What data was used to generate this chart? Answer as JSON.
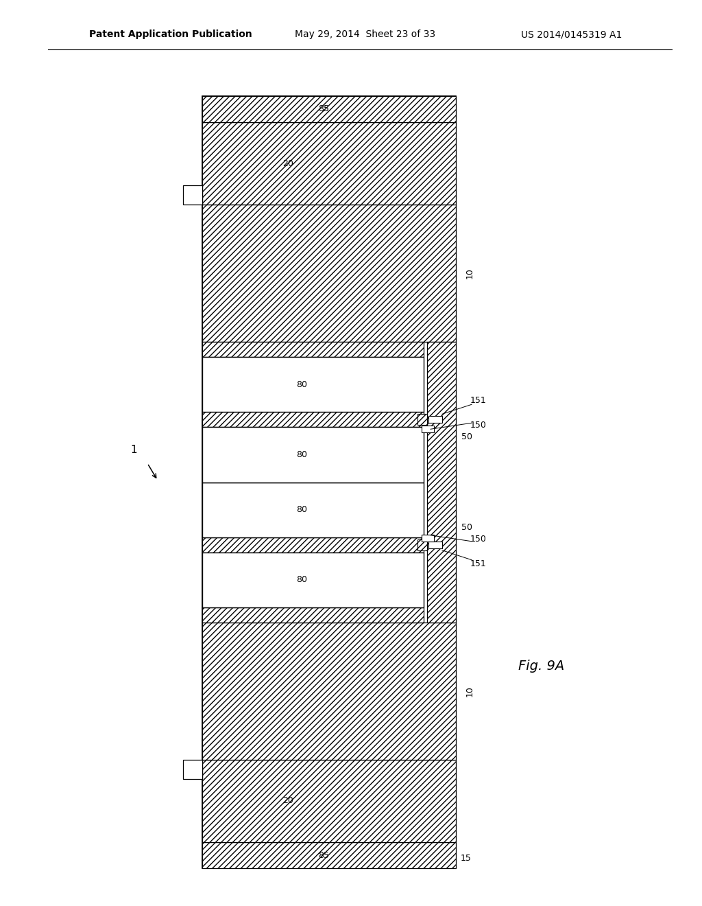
{
  "header_left": "Patent Application Publication",
  "header_mid": "May 29, 2014  Sheet 23 of 33",
  "header_right": "US 2014/0145319 A1",
  "fig_label": "Fig. 9A",
  "bg_color": "#ffffff"
}
